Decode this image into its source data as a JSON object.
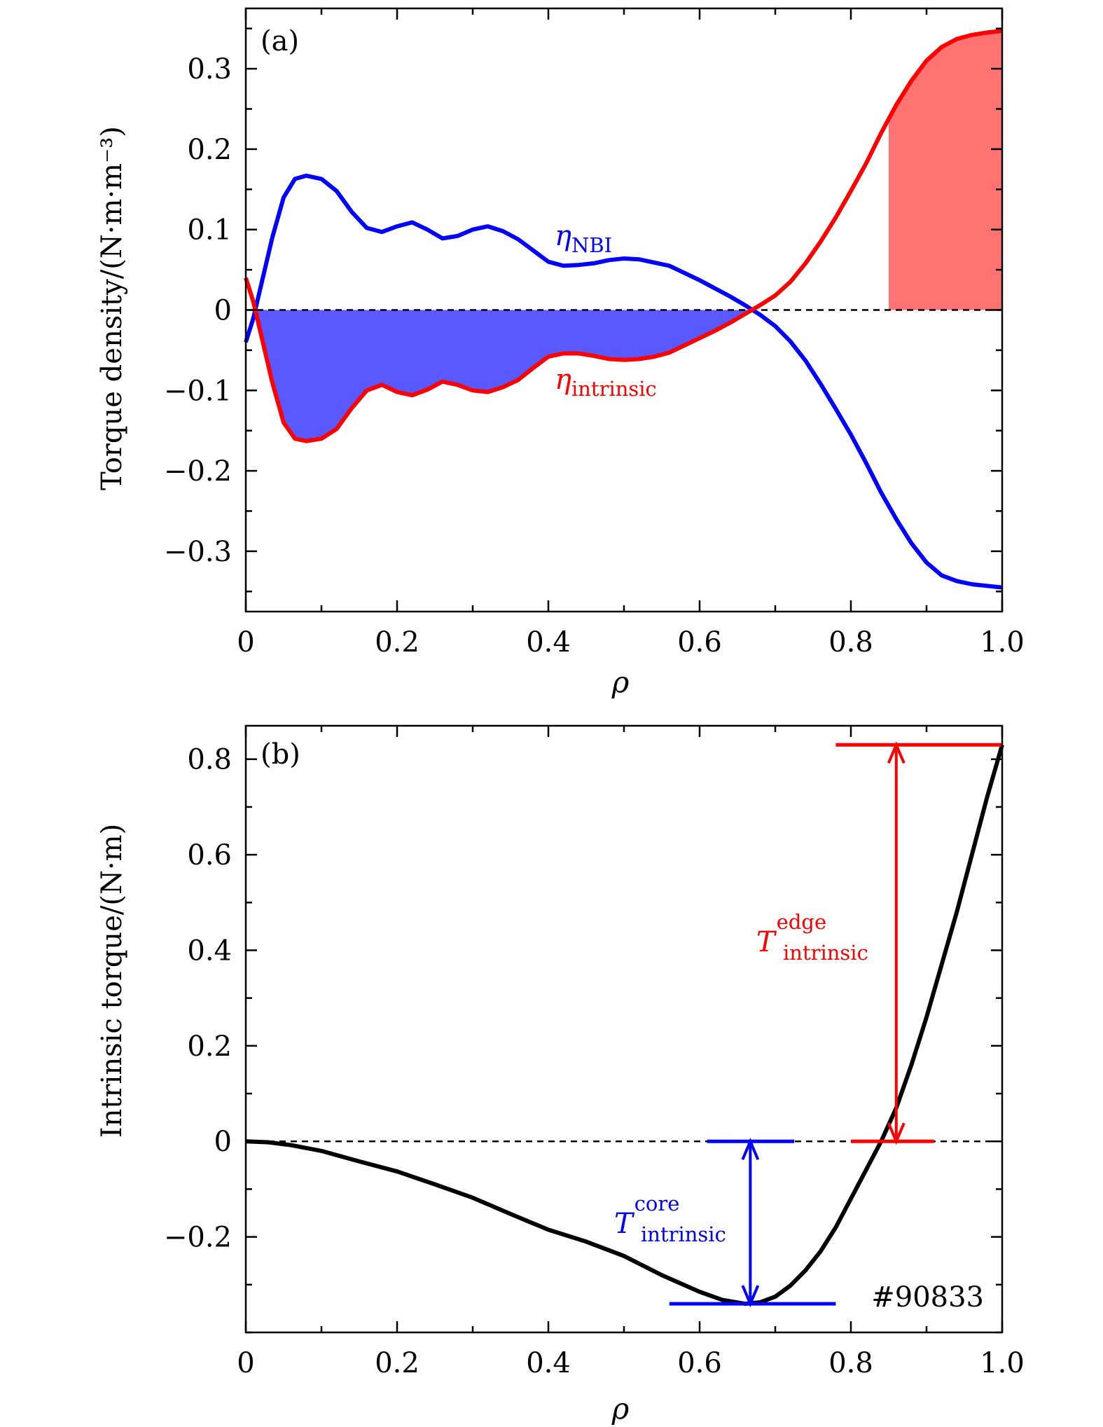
{
  "colors": {
    "nbi": "#0000ff",
    "intrinsic": "#ff0000",
    "black": "#000000",
    "fill_negative": "#5959ff",
    "fill_positive": "#ff7373"
  },
  "chart_data": [
    {
      "type": "line",
      "panel_label": "(a)",
      "xlabel": "ρ",
      "ylabel": "Torque density/(N·m·m⁻³)",
      "xlim": [
        0,
        1.0
      ],
      "ylim": [
        -0.375,
        0.375
      ],
      "x_ticks": [
        0,
        0.2,
        0.4,
        0.6,
        0.8,
        1.0
      ],
      "x_tick_labels": [
        "0",
        "0.2",
        "0.4",
        "0.6",
        "0.8",
        "1.0"
      ],
      "y_ticks": [
        -0.3,
        -0.2,
        -0.1,
        0,
        0.1,
        0.2,
        0.3
      ],
      "y_tick_labels": [
        "−0.3",
        "−0.2",
        "−0.1",
        "0",
        "0.1",
        "0.2",
        "0.3"
      ],
      "reference_line": {
        "y": 0,
        "style": "dashed"
      },
      "series": [
        {
          "name": "η_NBI",
          "label_main": "η",
          "label_sub": "NBI",
          "color": "#0000ff",
          "x": [
            0,
            0.01,
            0.02,
            0.035,
            0.05,
            0.065,
            0.08,
            0.1,
            0.12,
            0.14,
            0.16,
            0.18,
            0.2,
            0.22,
            0.24,
            0.26,
            0.28,
            0.3,
            0.32,
            0.34,
            0.36,
            0.38,
            0.4,
            0.42,
            0.44,
            0.46,
            0.48,
            0.5,
            0.52,
            0.54,
            0.56,
            0.58,
            0.6,
            0.62,
            0.64,
            0.66,
            0.68,
            0.7,
            0.72,
            0.74,
            0.76,
            0.78,
            0.8,
            0.82,
            0.84,
            0.86,
            0.88,
            0.9,
            0.92,
            0.94,
            0.96,
            0.98,
            1.0
          ],
          "values": [
            -0.04,
            -0.01,
            0.03,
            0.09,
            0.14,
            0.163,
            0.167,
            0.163,
            0.148,
            0.122,
            0.102,
            0.097,
            0.104,
            0.109,
            0.1,
            0.089,
            0.092,
            0.1,
            0.104,
            0.098,
            0.088,
            0.074,
            0.06,
            0.055,
            0.056,
            0.058,
            0.062,
            0.064,
            0.063,
            0.059,
            0.055,
            0.046,
            0.037,
            0.027,
            0.017,
            0.006,
            -0.006,
            -0.02,
            -0.039,
            -0.063,
            -0.092,
            -0.123,
            -0.155,
            -0.19,
            -0.227,
            -0.26,
            -0.29,
            -0.314,
            -0.33,
            -0.337,
            -0.341,
            -0.343,
            -0.345
          ]
        },
        {
          "name": "η_intrinsic",
          "label_main": "η",
          "label_sub": "intrinsic",
          "color": "#ff0000",
          "x": [
            0,
            0.01,
            0.02,
            0.035,
            0.05,
            0.065,
            0.08,
            0.1,
            0.12,
            0.14,
            0.16,
            0.18,
            0.2,
            0.22,
            0.24,
            0.26,
            0.28,
            0.3,
            0.32,
            0.34,
            0.36,
            0.38,
            0.4,
            0.42,
            0.44,
            0.46,
            0.48,
            0.5,
            0.52,
            0.54,
            0.56,
            0.58,
            0.6,
            0.62,
            0.64,
            0.66,
            0.68,
            0.7,
            0.72,
            0.74,
            0.76,
            0.78,
            0.8,
            0.82,
            0.84,
            0.86,
            0.88,
            0.9,
            0.92,
            0.94,
            0.96,
            0.98,
            1.0
          ],
          "values": [
            0.04,
            0.01,
            -0.03,
            -0.09,
            -0.14,
            -0.16,
            -0.163,
            -0.16,
            -0.148,
            -0.122,
            -0.1,
            -0.093,
            -0.102,
            -0.106,
            -0.099,
            -0.089,
            -0.093,
            -0.1,
            -0.102,
            -0.096,
            -0.087,
            -0.072,
            -0.058,
            -0.054,
            -0.054,
            -0.057,
            -0.061,
            -0.062,
            -0.061,
            -0.058,
            -0.053,
            -0.044,
            -0.035,
            -0.026,
            -0.016,
            -0.005,
            0.006,
            0.018,
            0.035,
            0.058,
            0.085,
            0.115,
            0.148,
            0.182,
            0.22,
            0.255,
            0.285,
            0.31,
            0.327,
            0.337,
            0.342,
            0.345,
            0.347
          ]
        }
      ],
      "shaded_regions": [
        {
          "series": "η_intrinsic",
          "x_range": [
            0.015,
            0.675
          ],
          "between": "curve and zero",
          "color": "#5959ff"
        },
        {
          "series": "η_intrinsic",
          "x_range": [
            0.85,
            1.0
          ],
          "between": "curve and zero",
          "color": "#ff7373"
        }
      ]
    },
    {
      "type": "line",
      "panel_label": "(b)",
      "xlabel": "ρ",
      "ylabel": "Intrinsic torque/(N·m)",
      "xlim": [
        0,
        1.0
      ],
      "ylim": [
        -0.4,
        0.87
      ],
      "x_ticks": [
        0,
        0.2,
        0.4,
        0.6,
        0.8,
        1.0
      ],
      "x_tick_labels": [
        "0",
        "0.2",
        "0.4",
        "0.6",
        "0.8",
        "1.0"
      ],
      "y_ticks": [
        -0.2,
        0,
        0.2,
        0.4,
        0.6,
        0.8
      ],
      "y_tick_labels": [
        "−0.2",
        "0",
        "0.2",
        "0.4",
        "0.6",
        "0.8"
      ],
      "reference_line": {
        "y": 0,
        "style": "dashed"
      },
      "series": [
        {
          "name": "Intrinsic torque",
          "color": "#000000",
          "x": [
            0,
            0.03,
            0.06,
            0.1,
            0.15,
            0.2,
            0.25,
            0.3,
            0.35,
            0.4,
            0.45,
            0.5,
            0.55,
            0.6,
            0.63,
            0.66,
            0.68,
            0.7,
            0.72,
            0.74,
            0.76,
            0.78,
            0.8,
            0.82,
            0.84,
            0.86,
            0.88,
            0.9,
            0.92,
            0.94,
            0.96,
            0.98,
            1.0
          ],
          "values": [
            0,
            -0.002,
            -0.008,
            -0.02,
            -0.042,
            -0.063,
            -0.09,
            -0.118,
            -0.152,
            -0.185,
            -0.21,
            -0.24,
            -0.28,
            -0.315,
            -0.332,
            -0.34,
            -0.337,
            -0.325,
            -0.302,
            -0.27,
            -0.23,
            -0.18,
            -0.12,
            -0.06,
            0.0,
            0.07,
            0.16,
            0.26,
            0.37,
            0.48,
            0.6,
            0.72,
            0.83
          ]
        }
      ],
      "annotations": [
        {
          "name": "T_intrinsic^edge",
          "main": "T",
          "sup": "edge",
          "sub": "intrinsic",
          "color": "#ff0000",
          "arrow_x": 0.86,
          "from_y": 0.0,
          "to_y": 0.83,
          "bar_top_x": [
            0.78,
            1.0
          ],
          "bar_bottom_x": [
            0.8,
            0.91
          ]
        },
        {
          "name": "T_intrinsic^core",
          "main": "T",
          "sup": "core",
          "sub": "intrinsic",
          "color": "#0000ff",
          "arrow_x": 0.667,
          "from_y": 0.0,
          "to_y": -0.34,
          "bar_top_x": [
            0.61,
            0.725
          ],
          "bar_bottom_x": [
            0.56,
            0.78
          ]
        }
      ],
      "shot_label": "#90833"
    }
  ]
}
